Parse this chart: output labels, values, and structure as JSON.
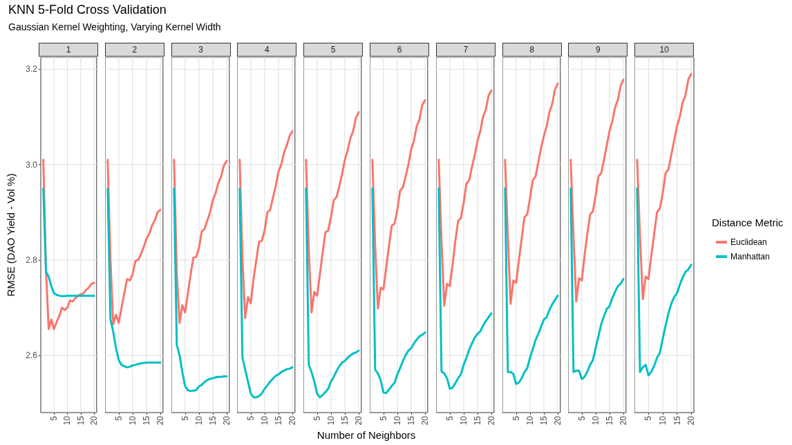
{
  "chart_data": [
    {
      "type": "line",
      "title": "1",
      "annotations": [
        "KNN 5-Fold Cross Validation",
        "Gaussian Kernel Weighting, Varying Kernel Width"
      ],
      "ylabel": "RMSE (DAO Yield - Vol %)",
      "x": [
        1,
        2,
        3,
        4,
        5,
        6,
        7,
        8,
        9,
        10,
        11,
        12,
        13,
        14,
        15,
        16,
        17,
        18,
        19,
        20
      ],
      "xlim": [
        0.05,
        20.95
      ],
      "xticks": [
        5,
        10,
        15,
        20
      ],
      "ylim": [
        2.48,
        3.225
      ],
      "yticks": [
        2.6,
        2.8,
        {
          "value": 3,
          "label": "3.0"
        },
        3.2
      ],
      "grid": true,
      "marker": "none",
      "series": [
        {
          "color": "#f8766d",
          "values": [
            3.01,
            2.78,
            2.655,
            2.675,
            2.655,
            2.67,
            2.683,
            2.7,
            2.695,
            2.7,
            2.715,
            2.713,
            2.72,
            2.725,
            2.728,
            2.73,
            2.737,
            2.742,
            2.75,
            2.752
          ]
        },
        {
          "color": "#00bfc4",
          "values": [
            2.95,
            2.775,
            2.765,
            2.745,
            2.73,
            2.727,
            2.725,
            2.724,
            2.724,
            2.725,
            2.725,
            2.725,
            2.725,
            2.725,
            2.725,
            2.725,
            2.725,
            2.725,
            2.725,
            2.725
          ]
        }
      ]
    },
    {
      "type": "line",
      "title": "2",
      "x": [
        1,
        2,
        3,
        4,
        5,
        6,
        7,
        8,
        9,
        10,
        11,
        12,
        13,
        14,
        15,
        16,
        17,
        18,
        19,
        20
      ],
      "xlim": [
        0.05,
        20.95
      ],
      "xticks": [
        5,
        10,
        15,
        20
      ],
      "ylim": [
        2.48,
        3.225
      ],
      "yticks": [
        2.6,
        2.8,
        3,
        3.2
      ],
      "grid": true,
      "marker": "none",
      "tick_labels": "x",
      "series": [
        {
          "color": "#f8766d",
          "values": [
            3.01,
            2.8,
            2.665,
            2.685,
            2.668,
            2.7,
            2.73,
            2.76,
            2.757,
            2.77,
            2.798,
            2.8,
            2.812,
            2.827,
            2.845,
            2.855,
            2.872,
            2.883,
            2.9,
            2.905
          ]
        },
        {
          "color": "#00bfc4",
          "values": [
            2.95,
            2.675,
            2.65,
            2.615,
            2.59,
            2.58,
            2.577,
            2.575,
            2.576,
            2.579,
            2.58,
            2.582,
            2.583,
            2.584,
            2.585,
            2.585,
            2.585,
            2.585,
            2.585,
            2.585
          ]
        }
      ]
    },
    {
      "type": "line",
      "title": "3",
      "x": [
        1,
        2,
        3,
        4,
        5,
        6,
        7,
        8,
        9,
        10,
        11,
        12,
        13,
        14,
        15,
        16,
        17,
        18,
        19,
        20
      ],
      "xlim": [
        0.05,
        20.95
      ],
      "xticks": [
        5,
        10,
        15,
        20
      ],
      "ylim": [
        2.48,
        3.225
      ],
      "yticks": [
        2.6,
        2.8,
        3,
        3.2
      ],
      "grid": true,
      "marker": "none",
      "tick_labels": "x",
      "series": [
        {
          "color": "#f8766d",
          "values": [
            3.01,
            2.77,
            2.668,
            2.705,
            2.69,
            2.73,
            2.77,
            2.805,
            2.806,
            2.825,
            2.86,
            2.865,
            2.882,
            2.9,
            2.925,
            2.94,
            2.962,
            2.975,
            2.998,
            3.008
          ]
        },
        {
          "color": "#00bfc4",
          "values": [
            2.95,
            2.622,
            2.6,
            2.565,
            2.535,
            2.527,
            2.525,
            2.526,
            2.527,
            2.535,
            2.538,
            2.544,
            2.548,
            2.551,
            2.552,
            2.554,
            2.555,
            2.555,
            2.556,
            2.556
          ]
        }
      ]
    },
    {
      "type": "line",
      "title": "4",
      "x": [
        1,
        2,
        3,
        4,
        5,
        6,
        7,
        8,
        9,
        10,
        11,
        12,
        13,
        14,
        15,
        16,
        17,
        18,
        19,
        20
      ],
      "xlim": [
        0.05,
        20.95
      ],
      "xticks": [
        5,
        10,
        15,
        20
      ],
      "ylim": [
        2.48,
        3.225
      ],
      "yticks": [
        2.6,
        2.8,
        3,
        3.2
      ],
      "grid": true,
      "marker": "none",
      "tick_labels": "x",
      "series": [
        {
          "color": "#f8766d",
          "values": [
            3.01,
            2.8,
            2.678,
            2.722,
            2.709,
            2.76,
            2.8,
            2.838,
            2.84,
            2.862,
            2.9,
            2.905,
            2.93,
            2.955,
            2.985,
            3.0,
            3.025,
            3.04,
            3.06,
            3.07
          ]
        },
        {
          "color": "#00bfc4",
          "values": [
            2.95,
            2.595,
            2.57,
            2.545,
            2.52,
            2.512,
            2.512,
            2.515,
            2.52,
            2.53,
            2.537,
            2.545,
            2.551,
            2.557,
            2.56,
            2.565,
            2.568,
            2.571,
            2.572,
            2.575
          ]
        }
      ]
    },
    {
      "type": "line",
      "title": "5",
      "xlabel": "Number of Neighbors",
      "x": [
        1,
        2,
        3,
        4,
        5,
        6,
        7,
        8,
        9,
        10,
        11,
        12,
        13,
        14,
        15,
        16,
        17,
        18,
        19,
        20
      ],
      "xlim": [
        0.05,
        20.95
      ],
      "xticks": [
        5,
        10,
        15,
        20
      ],
      "ylim": [
        2.48,
        3.225
      ],
      "yticks": [
        2.6,
        2.8,
        3,
        3.2
      ],
      "grid": true,
      "marker": "none",
      "tick_labels": "x",
      "series": [
        {
          "color": "#f8766d",
          "values": [
            3.01,
            2.82,
            2.69,
            2.733,
            2.725,
            2.77,
            2.815,
            2.858,
            2.862,
            2.89,
            2.925,
            2.932,
            2.955,
            2.98,
            3.01,
            3.03,
            3.055,
            3.07,
            3.098,
            3.11
          ]
        },
        {
          "color": "#00bfc4",
          "values": [
            2.95,
            2.58,
            2.565,
            2.545,
            2.52,
            2.512,
            2.517,
            2.523,
            2.53,
            2.545,
            2.555,
            2.567,
            2.577,
            2.585,
            2.588,
            2.595,
            2.6,
            2.604,
            2.606,
            2.61
          ]
        }
      ]
    },
    {
      "type": "line",
      "title": "6",
      "x": [
        1,
        2,
        3,
        4,
        5,
        6,
        7,
        8,
        9,
        10,
        11,
        12,
        13,
        14,
        15,
        16,
        17,
        18,
        19,
        20
      ],
      "xlim": [
        0.05,
        20.95
      ],
      "xticks": [
        5,
        10,
        15,
        20
      ],
      "ylim": [
        2.48,
        3.225
      ],
      "yticks": [
        2.6,
        2.8,
        3,
        3.2
      ],
      "grid": true,
      "marker": "none",
      "tick_labels": "x",
      "series": [
        {
          "color": "#f8766d",
          "values": [
            3.01,
            2.83,
            2.698,
            2.742,
            2.738,
            2.785,
            2.83,
            2.872,
            2.876,
            2.905,
            2.945,
            2.952,
            2.975,
            3.0,
            3.032,
            3.05,
            3.08,
            3.095,
            3.125,
            3.135
          ]
        },
        {
          "color": "#00bfc4",
          "values": [
            2.95,
            2.57,
            2.562,
            2.548,
            2.522,
            2.521,
            2.528,
            2.536,
            2.542,
            2.56,
            2.573,
            2.588,
            2.6,
            2.61,
            2.615,
            2.625,
            2.633,
            2.64,
            2.643,
            2.648
          ]
        }
      ]
    },
    {
      "type": "line",
      "title": "7",
      "x": [
        1,
        2,
        3,
        4,
        5,
        6,
        7,
        8,
        9,
        10,
        11,
        12,
        13,
        14,
        15,
        16,
        17,
        18,
        19,
        20
      ],
      "xlim": [
        0.05,
        20.95
      ],
      "xticks": [
        5,
        10,
        15,
        20
      ],
      "ylim": [
        2.48,
        3.225
      ],
      "yticks": [
        2.6,
        2.8,
        3,
        3.2
      ],
      "grid": true,
      "marker": "none",
      "tick_labels": "x",
      "series": [
        {
          "color": "#f8766d",
          "values": [
            3.01,
            2.84,
            2.704,
            2.75,
            2.745,
            2.79,
            2.84,
            2.882,
            2.888,
            2.92,
            2.96,
            2.967,
            2.995,
            3.02,
            3.05,
            3.07,
            3.1,
            3.115,
            3.145,
            3.155
          ]
        },
        {
          "color": "#00bfc4",
          "values": [
            2.95,
            2.566,
            2.562,
            2.552,
            2.53,
            2.532,
            2.542,
            2.552,
            2.56,
            2.58,
            2.595,
            2.612,
            2.625,
            2.637,
            2.645,
            2.65,
            2.662,
            2.672,
            2.68,
            2.688
          ]
        }
      ]
    },
    {
      "type": "line",
      "title": "8",
      "x": [
        1,
        2,
        3,
        4,
        5,
        6,
        7,
        8,
        9,
        10,
        11,
        12,
        13,
        14,
        15,
        16,
        17,
        18,
        19,
        20
      ],
      "xlim": [
        0.05,
        20.95
      ],
      "xticks": [
        5,
        10,
        15,
        20
      ],
      "ylim": [
        2.48,
        3.225
      ],
      "yticks": [
        2.6,
        2.8,
        3,
        3.2
      ],
      "grid": true,
      "marker": "none",
      "tick_labels": "x",
      "series": [
        {
          "color": "#f8766d",
          "values": [
            3.01,
            2.85,
            2.708,
            2.757,
            2.752,
            2.8,
            2.845,
            2.89,
            2.895,
            2.93,
            2.967,
            2.975,
            3.005,
            3.035,
            3.06,
            3.08,
            3.11,
            3.127,
            3.157,
            3.17
          ]
        },
        {
          "color": "#00bfc4",
          "values": [
            2.95,
            2.565,
            2.565,
            2.561,
            2.54,
            2.543,
            2.552,
            2.565,
            2.573,
            2.595,
            2.613,
            2.632,
            2.645,
            2.66,
            2.675,
            2.68,
            2.695,
            2.707,
            2.716,
            2.725
          ]
        }
      ]
    },
    {
      "type": "line",
      "title": "9",
      "x": [
        1,
        2,
        3,
        4,
        5,
        6,
        7,
        8,
        9,
        10,
        11,
        12,
        13,
        14,
        15,
        16,
        17,
        18,
        19,
        20
      ],
      "xlim": [
        0.05,
        20.95
      ],
      "xticks": [
        5,
        10,
        15,
        20
      ],
      "ylim": [
        2.48,
        3.225
      ],
      "yticks": [
        2.6,
        2.8,
        3,
        3.2
      ],
      "grid": true,
      "marker": "none",
      "tick_labels": "x",
      "series": [
        {
          "color": "#f8766d",
          "values": [
            3.01,
            2.85,
            2.713,
            2.762,
            2.757,
            2.81,
            2.855,
            2.895,
            2.902,
            2.935,
            2.975,
            2.982,
            3.01,
            3.04,
            3.07,
            3.09,
            3.12,
            3.135,
            3.165,
            3.178
          ]
        },
        {
          "color": "#00bfc4",
          "values": [
            2.95,
            2.565,
            2.568,
            2.568,
            2.55,
            2.555,
            2.566,
            2.58,
            2.59,
            2.615,
            2.64,
            2.665,
            2.682,
            2.697,
            2.703,
            2.72,
            2.733,
            2.745,
            2.75,
            2.76
          ]
        }
      ]
    },
    {
      "type": "line",
      "title": "10",
      "legend": "right",
      "legend_title": "Distance Metric",
      "x": [
        1,
        2,
        3,
        4,
        5,
        6,
        7,
        8,
        9,
        10,
        11,
        12,
        13,
        14,
        15,
        16,
        17,
        18,
        19,
        20
      ],
      "xlim": [
        0.05,
        20.95
      ],
      "xticks": [
        5,
        10,
        15,
        20
      ],
      "ylim": [
        2.48,
        3.225
      ],
      "yticks": [
        2.6,
        2.8,
        3,
        3.2
      ],
      "grid": true,
      "marker": "none",
      "tick_labels": "x",
      "series": [
        {
          "name": "Euclidean",
          "color": "#f8766d",
          "values": [
            3.01,
            2.85,
            2.718,
            2.765,
            2.76,
            2.81,
            2.855,
            2.9,
            2.908,
            2.94,
            2.982,
            2.99,
            3.02,
            3.05,
            3.08,
            3.1,
            3.13,
            3.145,
            3.178,
            3.19
          ]
        },
        {
          "name": "Manhattan",
          "color": "#00bfc4",
          "values": [
            2.95,
            2.565,
            2.575,
            2.58,
            2.558,
            2.566,
            2.578,
            2.595,
            2.605,
            2.635,
            2.662,
            2.688,
            2.708,
            2.722,
            2.73,
            2.748,
            2.763,
            2.775,
            2.78,
            2.79
          ]
        }
      ]
    }
  ]
}
